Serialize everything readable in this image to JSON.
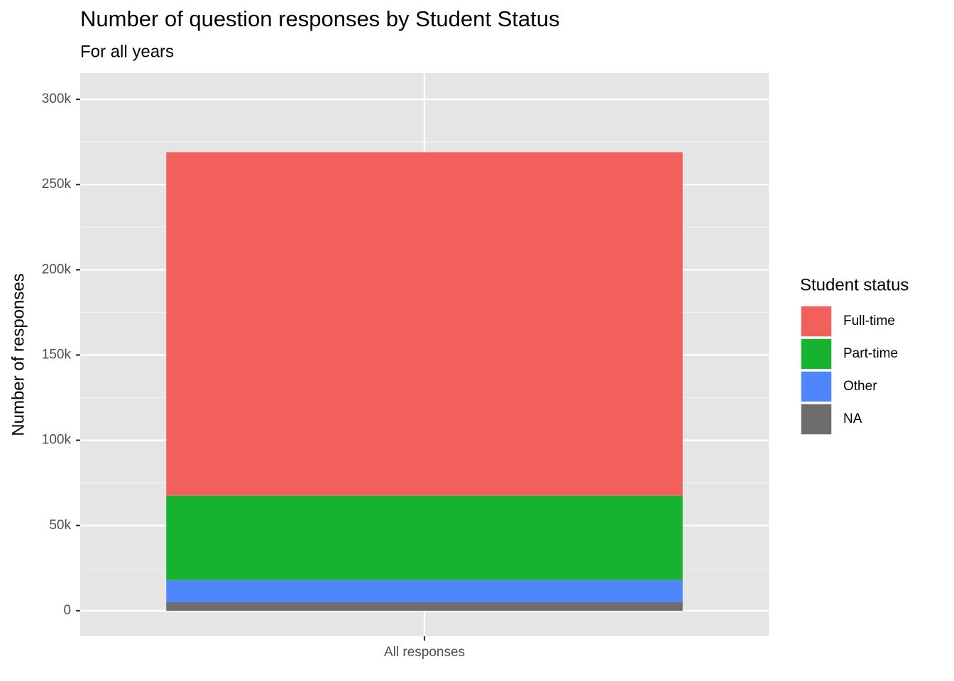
{
  "chart_data": {
    "type": "stacked_bar",
    "title": "Number of question responses by Student Status",
    "subtitle": "For all years",
    "y_label": "Number of responses",
    "legend_title": "Student status",
    "categories": [
      "All responses"
    ],
    "series": [
      {
        "name": "Full-time",
        "color": "#f2605b",
        "values": [
          201500
        ]
      },
      {
        "name": "Part-time",
        "color": "#18b231",
        "values": [
          49500
        ]
      },
      {
        "name": "Other",
        "color": "#4f86fc",
        "values": [
          13000
        ]
      },
      {
        "name": "NA",
        "color": "#6d6d6d",
        "values": [
          5000
        ]
      }
    ],
    "ylim": [
      -15000,
      315400
    ],
    "yticks": [
      0,
      {
        "value": 50000,
        "label": "50k"
      },
      {
        "value": 100000,
        "label": "100k"
      },
      {
        "value": 150000,
        "label": "150k"
      },
      {
        "value": 200000,
        "label": "200k"
      },
      {
        "value": 250000,
        "label": "250k"
      },
      {
        "value": 300000,
        "label": "300k"
      }
    ],
    "grid": true,
    "legend_position": "right"
  }
}
